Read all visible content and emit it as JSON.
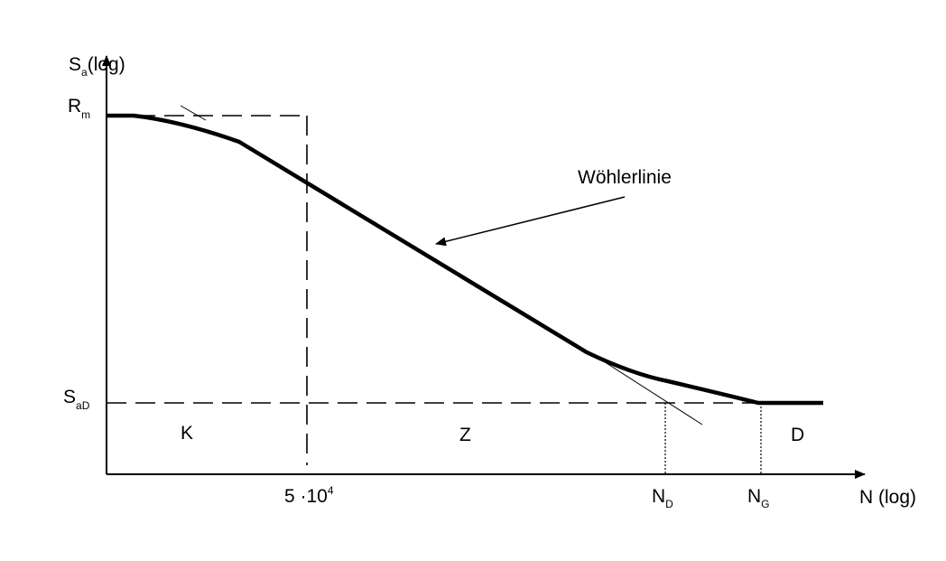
{
  "y_axis_label": {
    "main": "S",
    "sub": "a",
    "rest": "(log)"
  },
  "x_axis_label": "N (log)",
  "y_marks": [
    {
      "main": "R",
      "sub": "m"
    },
    {
      "main": "S",
      "sub": "aD"
    }
  ],
  "x_marks": [
    {
      "main": "5 ·10",
      "sup": "4"
    },
    {
      "main": "N",
      "sub": "D"
    },
    {
      "main": "N",
      "sub": "G"
    }
  ],
  "regions": [
    "K",
    "Z",
    "D"
  ],
  "curve_label": "Wöhlerlinie"
}
